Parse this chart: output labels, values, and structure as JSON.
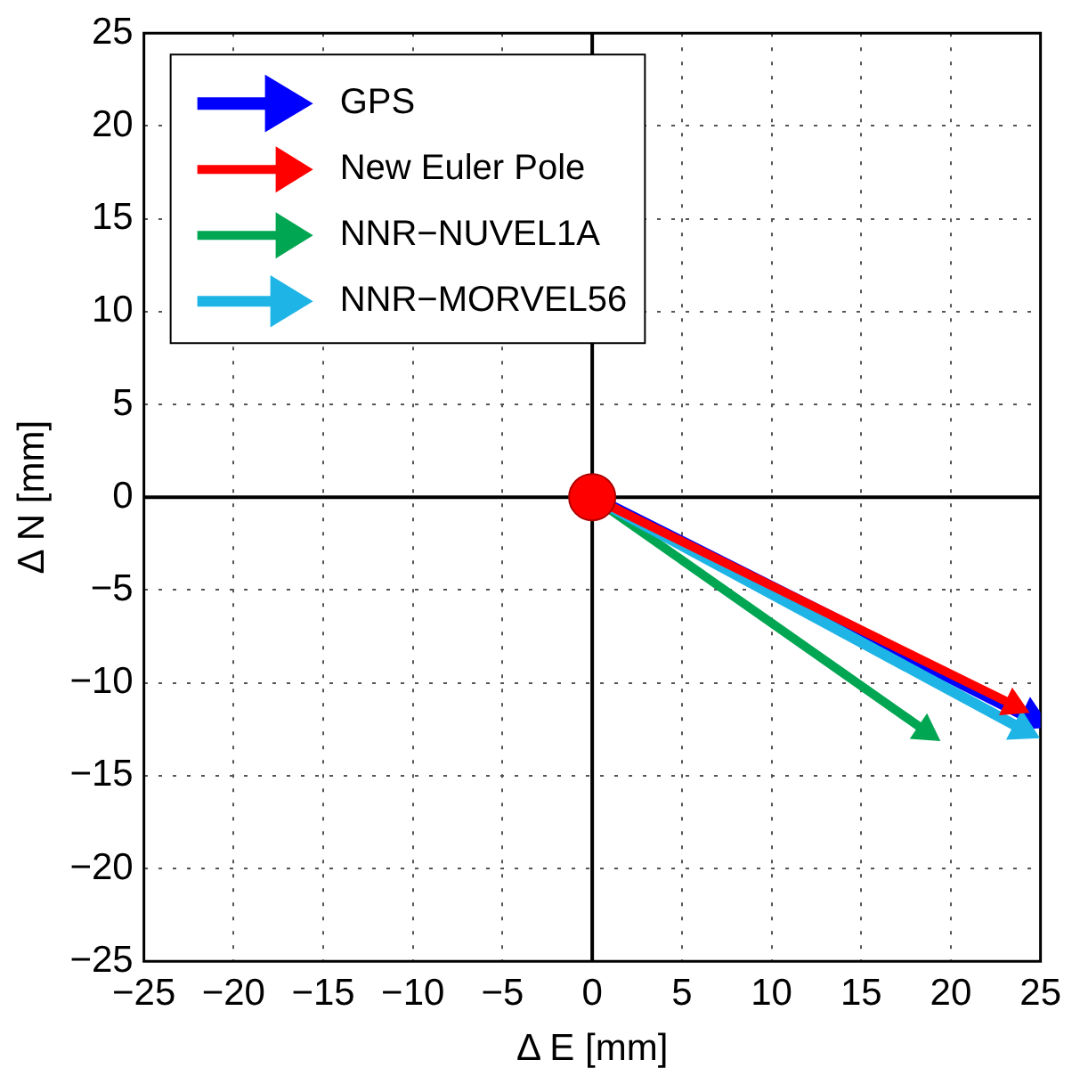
{
  "chart_data": {
    "type": "line",
    "xlabel": "Δ E [mm]",
    "ylabel": "Δ N [mm]",
    "xlim": [
      -25,
      25
    ],
    "ylim": [
      -25,
      25
    ],
    "xticks": [
      -25,
      -20,
      -15,
      -10,
      -5,
      0,
      5,
      10,
      15,
      20,
      25
    ],
    "yticks": [
      -25,
      -20,
      -15,
      -10,
      -5,
      0,
      5,
      10,
      15,
      20,
      25
    ],
    "grid": true,
    "legend": "top left",
    "marker": "triangle",
    "line_style": "solid",
    "series": [
      {
        "name": "GPS",
        "color": "#0000ff",
        "x": [
          0,
          24.5
        ],
        "values": [
          0,
          -11.9
        ]
      },
      {
        "name": "New Euler Pole",
        "color": "#ff0000",
        "x": [
          0,
          23.5
        ],
        "values": [
          0,
          -11.2
        ]
      },
      {
        "name": "NNR−NUVEL1A",
        "color": "#00a651",
        "x": [
          0,
          18.6
        ],
        "values": [
          0,
          -12.6
        ]
      },
      {
        "name": "NNR−MORVEL56",
        "color": "#1eb4e6",
        "x": [
          0,
          24
        ],
        "values": [
          0,
          -12.5
        ]
      },
      {
        "type": "scatter",
        "color": "#ff0000",
        "marker": "circle",
        "x": [
          0
        ],
        "values": [
          0
        ]
      }
    ]
  }
}
